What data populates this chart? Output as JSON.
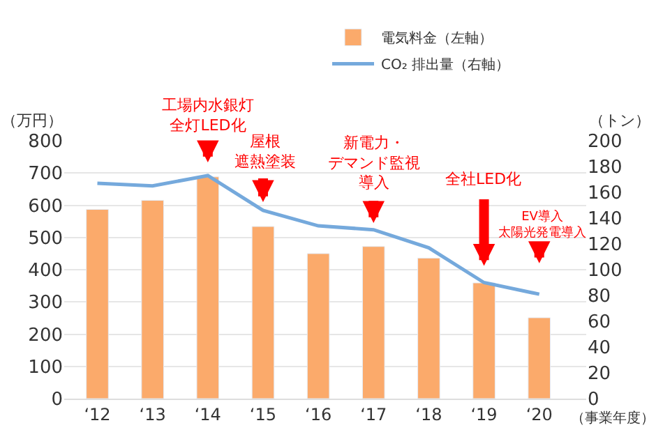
{
  "chart_data": {
    "type": "bar",
    "categories": [
      "‘12",
      "‘13",
      "‘14",
      "‘15",
      "‘16",
      "‘17",
      "‘18",
      "‘19",
      "‘20"
    ],
    "series": [
      {
        "name": "電気料金（左軸）",
        "color": "#fbaa6b",
        "values": [
          587,
          615,
          688,
          534,
          450,
          472,
          436,
          359,
          251
        ]
      },
      {
        "name": "CO₂ 排出量（右軸）",
        "type": "line",
        "axis": "y2",
        "color": "#75a9dc",
        "values": [
          167,
          165,
          173,
          146,
          134,
          131,
          117,
          90,
          81
        ]
      }
    ],
    "ylabel": "（万円）",
    "y2label": "（トン）",
    "xlabel": "（事業年度）",
    "ylim": [
      0,
      800
    ],
    "yticks": [
      0,
      100,
      200,
      300,
      400,
      500,
      600,
      700,
      800
    ],
    "y2lim": [
      0,
      200
    ],
    "y2ticks": [
      0,
      20,
      40,
      60,
      80,
      100,
      120,
      140,
      160,
      180,
      200
    ],
    "grid": "y",
    "legend": "top",
    "marker": "none",
    "line_style": "solid",
    "annotations": [
      "工場内水銀灯全灯LED化",
      "屋根遮熱塗装",
      "新電力・デマンド監視導入",
      "全社LED化",
      "EV導入太陽光発電導入"
    ]
  }
}
